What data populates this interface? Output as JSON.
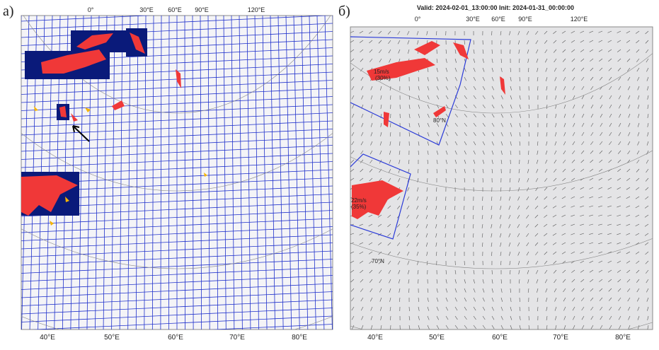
{
  "panels": [
    {
      "label": "а)",
      "top_labels": [
        "0°",
        "30°E",
        "60°E",
        "90°E",
        "120°E"
      ],
      "bottom_labels": [
        "40°E",
        "50°E",
        "60°E",
        "70°E",
        "80°E"
      ]
    },
    {
      "label": "б)",
      "title": "Valid: 2024-02-01_13:00:00 Init: 2024-01-31_00:00:00",
      "top_labels": [
        "0°",
        "30°E",
        "60°E",
        "90°E",
        "120°E"
      ],
      "bottom_labels": [
        "40°E",
        "50°E",
        "60°E",
        "70°E",
        "80°E"
      ],
      "annotations": [
        "15m/s",
        "(30%)",
        "80°N",
        "22m/s",
        "(35%)",
        "70°N"
      ]
    }
  ]
}
